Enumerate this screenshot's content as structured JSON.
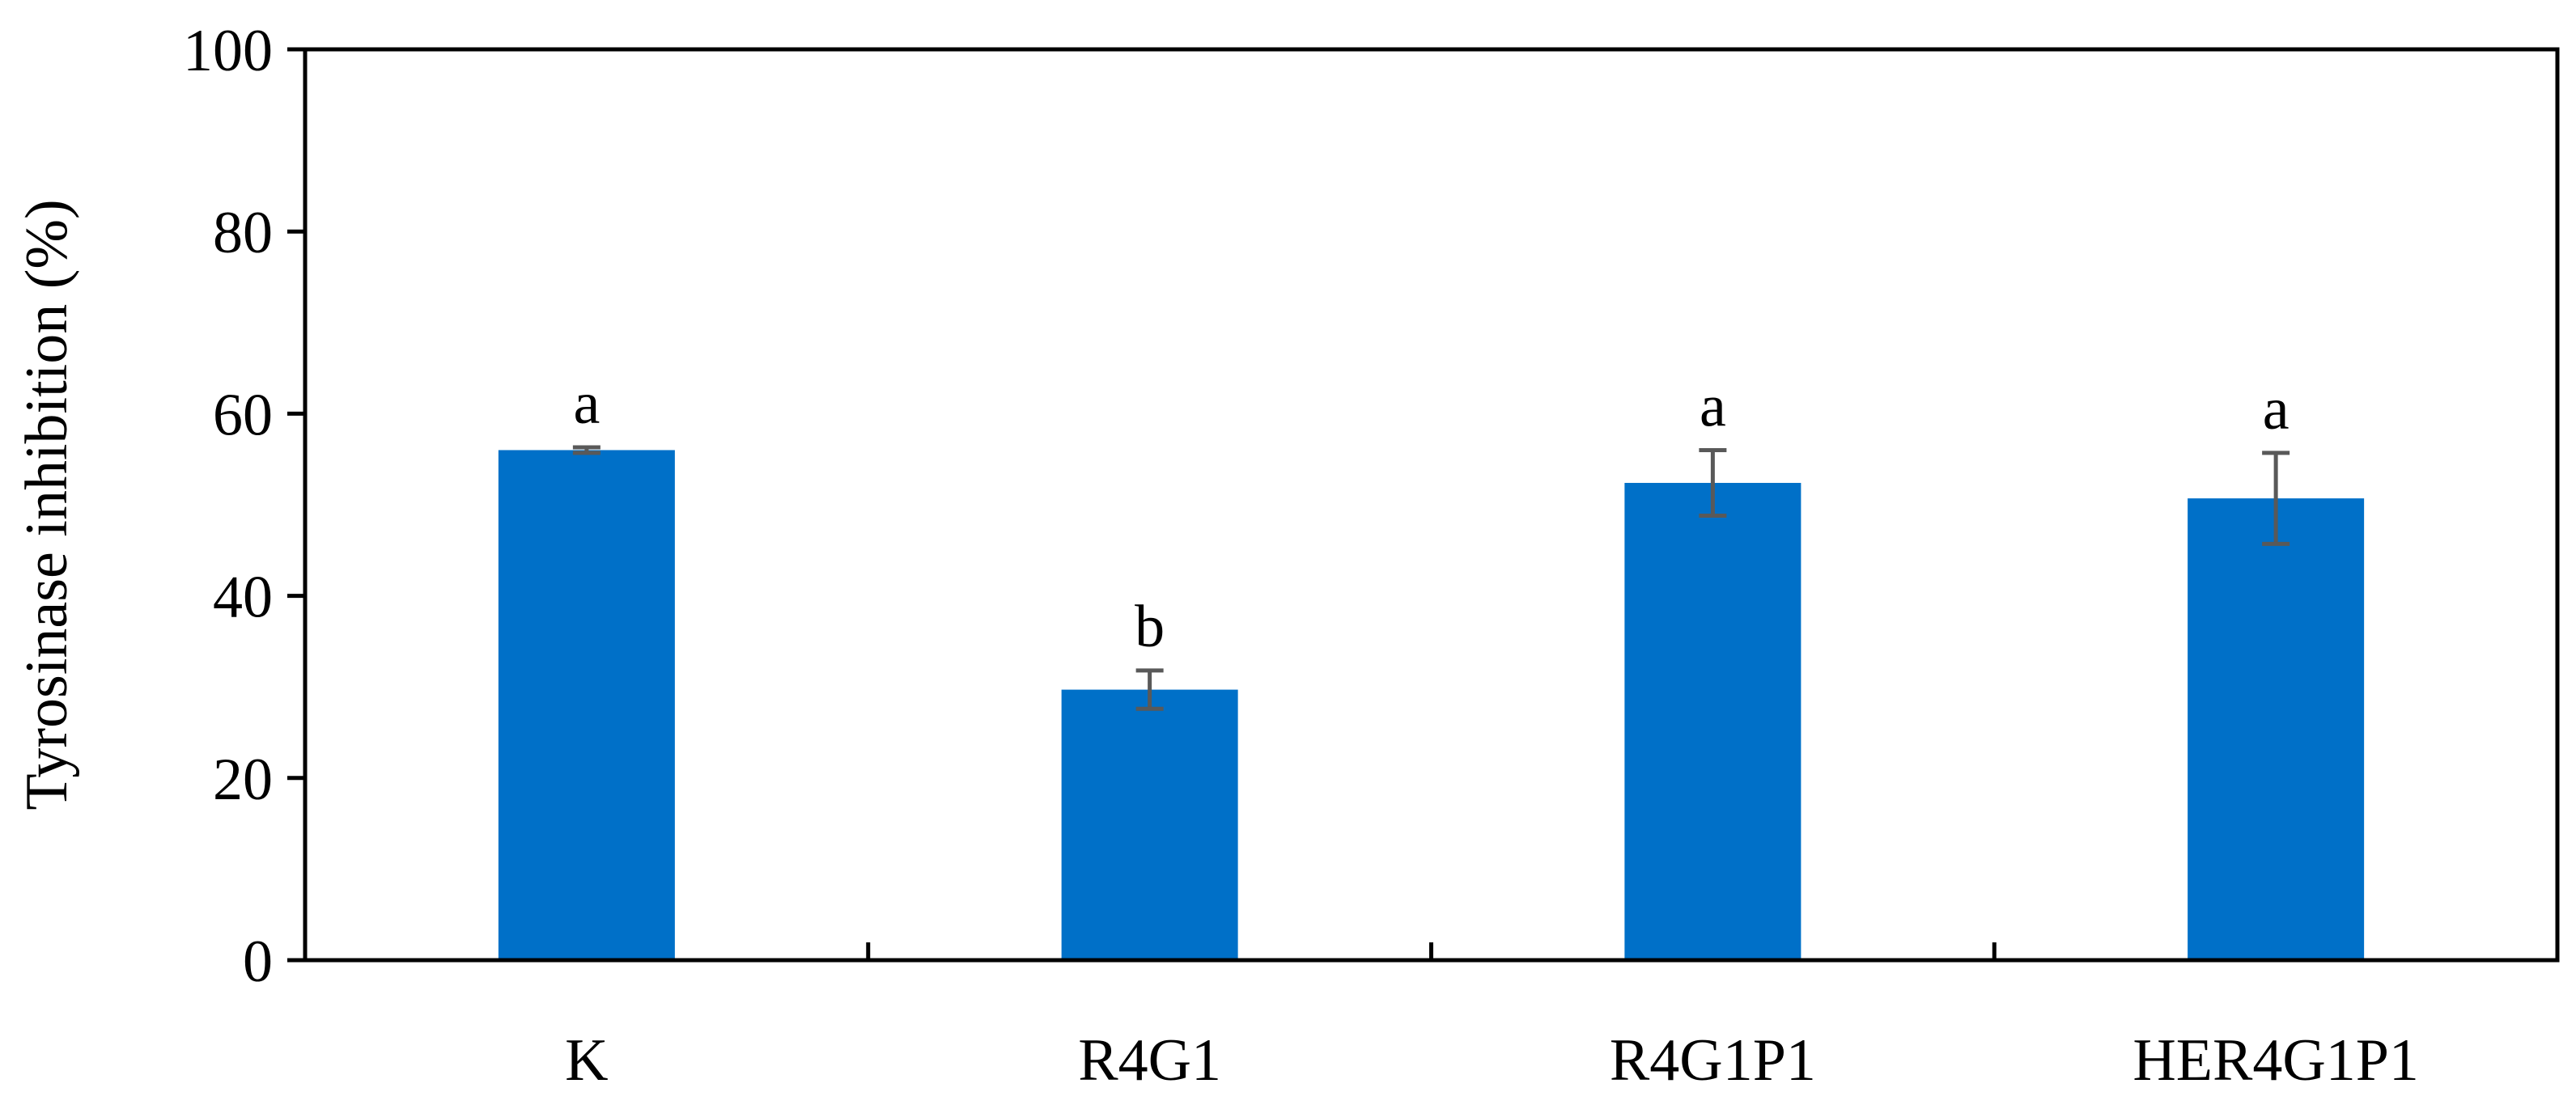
{
  "chart_data": {
    "type": "bar",
    "title": "",
    "xlabel": "",
    "ylabel": "Tyrosinase inhibition (%)",
    "ylim": [
      0,
      100
    ],
    "yticks": [
      "0",
      "20",
      "40",
      "60",
      "80",
      "100"
    ],
    "categories": [
      "K",
      "R4G1",
      "R4G1P1",
      "HER4G1P1"
    ],
    "values": [
      56.0,
      29.7,
      52.4,
      50.7
    ],
    "errors": [
      0.3,
      2.1,
      3.6,
      5.0
    ],
    "significance": [
      "a",
      "b",
      "a",
      "a"
    ],
    "bar_color": "#0070C8",
    "error_bar_color": "#595959",
    "grid": false,
    "legend": "none"
  }
}
